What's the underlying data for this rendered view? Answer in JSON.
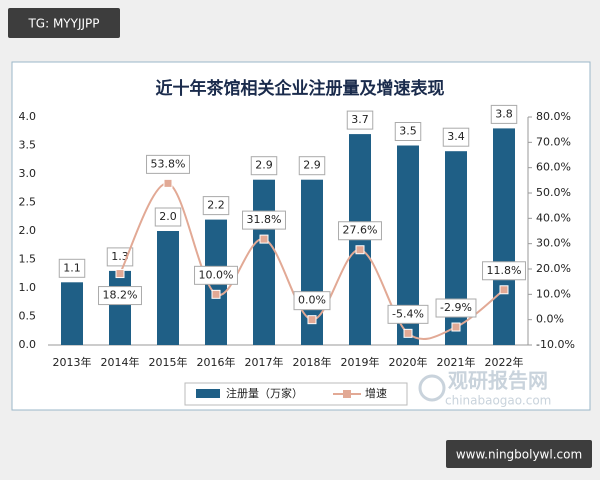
{
  "chart_data": {
    "type": "bar_line",
    "title": "近十年茶馆相关企业注册量及增速表现",
    "categories": [
      "2013年",
      "2014年",
      "2015年",
      "2016年",
      "2017年",
      "2018年",
      "2019年",
      "2020年",
      "2021年",
      "2022年"
    ],
    "series": [
      {
        "name": "注册量（万家）",
        "type": "bar",
        "color": "#1f5f86",
        "values": [
          1.1,
          1.3,
          2.0,
          2.2,
          2.9,
          2.9,
          3.7,
          3.5,
          3.4,
          3.8
        ],
        "value_labels": [
          "1.1",
          "1.3",
          "2.0",
          "2.2",
          "2.9",
          "2.9",
          "3.7",
          "3.5",
          "3.4",
          "3.8"
        ]
      },
      {
        "name": "增速",
        "type": "line",
        "axis": "y2",
        "color": "#e2a995",
        "values": [
          null,
          18.2,
          53.8,
          10.0,
          31.8,
          0.0,
          27.6,
          -5.4,
          -2.9,
          11.8
        ],
        "value_labels": [
          null,
          "18.2%",
          "53.8%",
          "10.0%",
          "31.8%",
          "0.0%",
          "27.6%",
          "-5.4%",
          "-2.9%",
          "11.8%"
        ]
      }
    ],
    "ylim": [
      0,
      4
    ],
    "yticks": [
      {
        "value": 0,
        "label": "0.0"
      },
      0.5,
      {
        "value": 1,
        "label": "1.0"
      },
      1.5,
      {
        "value": 2,
        "label": "2.0"
      },
      2.5,
      {
        "value": 3,
        "label": "3.0"
      },
      3.5,
      {
        "value": 4,
        "label": "4.0"
      }
    ],
    "y2lim": [
      -10,
      80
    ],
    "y2ticks": [
      {
        "value": -10,
        "label": "-10.0%"
      },
      {
        "value": 0,
        "label": "0.0%"
      },
      {
        "value": 10,
        "label": "10.0%"
      },
      {
        "value": 20,
        "label": "20.0%"
      },
      {
        "value": 30,
        "label": "30.0%"
      },
      {
        "value": 40,
        "label": "40.0%"
      },
      {
        "value": 50,
        "label": "50.0%"
      },
      {
        "value": 60,
        "label": "60.0%"
      },
      {
        "value": 70,
        "label": "70.0%"
      },
      {
        "value": 80,
        "label": "80.0%"
      }
    ],
    "grid": false,
    "legend": "bottom"
  },
  "overlays": {
    "top_badge": "TG: MYYJJPP",
    "watermark_cn": "观研报告网",
    "watermark_en": "chinabaogao.com",
    "bottom_badge": "www.ningbolywl.com"
  }
}
